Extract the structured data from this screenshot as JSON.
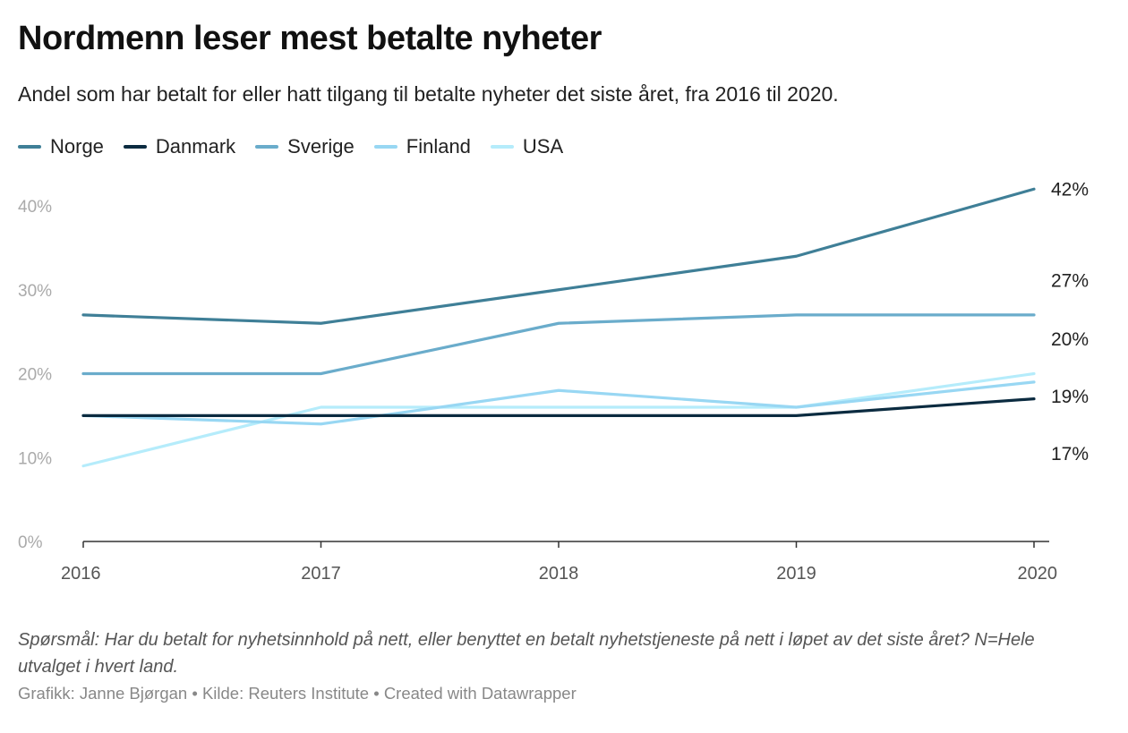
{
  "header": {
    "title": "Nordmenn leser mest betalte nyheter",
    "subtitle": "Andel som har betalt for eller hatt tilgang til betalte nyheter det siste året, fra 2016 til 2020."
  },
  "footer": {
    "notes": "Spørsmål: Har du betalt for nyhetsinnhold på nett, eller benyttet en betalt nyhetstjeneste på nett i løpet av det siste året? N=Hele utvalget i hvert land.",
    "byline": "Grafikk: Janne Bjørgan • Kilde: Reuters Institute • Created with Datawrapper"
  },
  "chart_data": {
    "type": "line",
    "title": "Nordmenn leser mest betalte nyheter",
    "subtitle": "Andel som har betalt for eller hatt tilgang til betalte nyheter det siste året, fra 2016 til 2020.",
    "xlabel": "",
    "ylabel": "",
    "x": [
      "2016",
      "2017",
      "2018",
      "2019",
      "2020"
    ],
    "ylim": [
      0,
      40
    ],
    "yticks": [
      0,
      10,
      20,
      30,
      40
    ],
    "ytick_labels": [
      "0%",
      "10%",
      "20%",
      "30%",
      "40%"
    ],
    "grid": false,
    "legend_position": "top-left",
    "series": [
      {
        "name": "Norge",
        "color": "#3f7f97",
        "values": [
          27,
          26,
          30,
          34,
          42
        ],
        "end_label": "42%"
      },
      {
        "name": "Danmark",
        "color": "#0b2b40",
        "values": [
          15,
          15,
          15,
          15,
          17
        ],
        "end_label": "17%"
      },
      {
        "name": "Sverige",
        "color": "#6aaccb",
        "values": [
          20,
          20,
          26,
          27,
          27
        ],
        "end_label": "27%"
      },
      {
        "name": "Finland",
        "color": "#98d7f3",
        "values": [
          15,
          14,
          18,
          16,
          19
        ],
        "end_label": "19%"
      },
      {
        "name": "USA",
        "color": "#b5ecfb",
        "values": [
          9,
          16,
          16,
          16,
          20
        ],
        "end_label": "20%"
      }
    ]
  }
}
